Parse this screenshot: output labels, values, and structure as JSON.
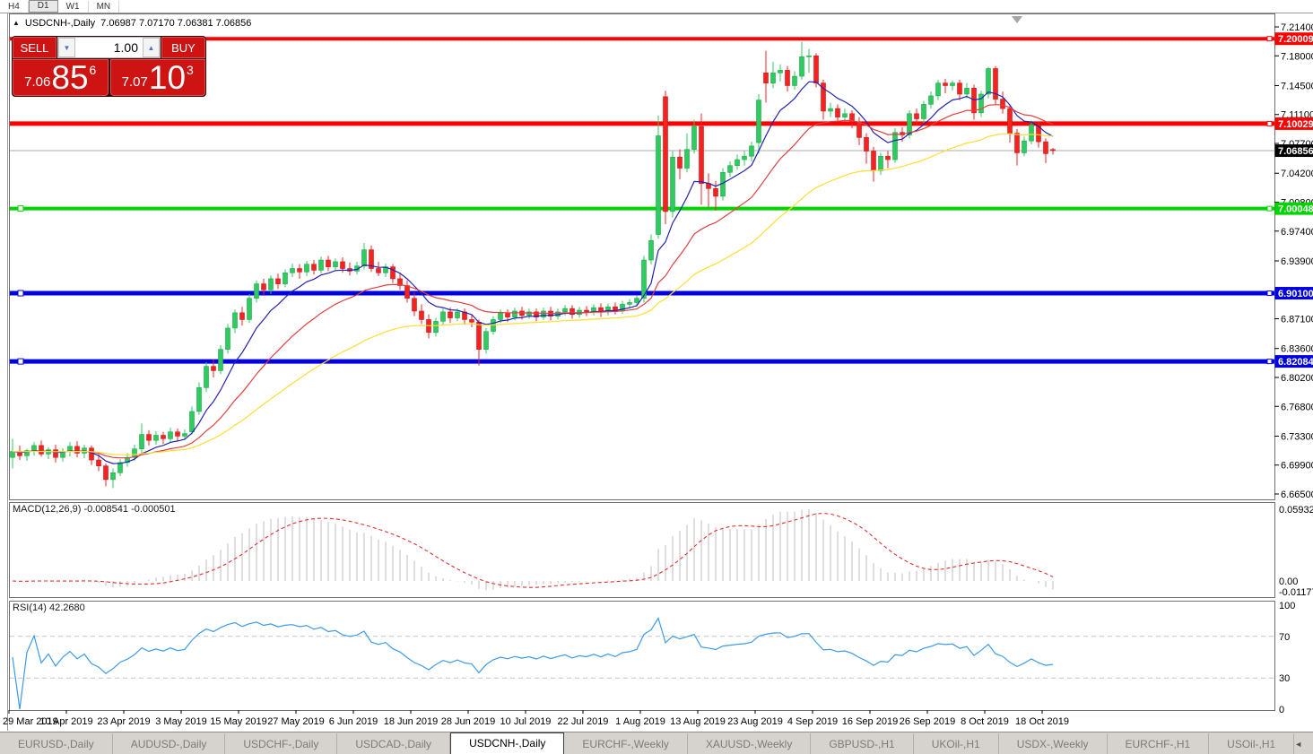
{
  "window": {
    "toolbar_timeframes": [
      "H4",
      "D1",
      "W1",
      "MN"
    ],
    "active_timeframe": "D1"
  },
  "chart_header": {
    "collapse_marker": "▲",
    "symbol": "USDCNH-,Daily",
    "ohlc_text": "7.06987 7.07170 7.06381 7.06856"
  },
  "trade_panel": {
    "sell_label": "SELL",
    "buy_label": "BUY",
    "volume_value": "1.00",
    "spin_down": "▼",
    "spin_up": "▲",
    "sell_price_prefix": "7.06",
    "sell_price_big": "85",
    "sell_price_sup": "6",
    "buy_price_prefix": "7.07",
    "buy_price_big": "10",
    "buy_price_sup": "3"
  },
  "price_axis": {
    "ticks": [
      "7.21400",
      "7.18000",
      "7.14500",
      "7.11100",
      "7.07700",
      "7.04200",
      "7.00800",
      "6.97400",
      "6.93900",
      "6.87100",
      "6.83600",
      "6.80200",
      "6.76800",
      "6.73300",
      "6.69900",
      "6.66500"
    ]
  },
  "macd_panel": {
    "label": "MACD(12,26,9) -0.008541 -0.000501",
    "axis_max": "0.059323",
    "axis_zero": "0.00",
    "axis_min": "-0.011773"
  },
  "rsi_panel": {
    "label": "RSI(14) 42.2680",
    "axis": [
      "100",
      "70",
      "30",
      "0"
    ]
  },
  "time_axis": {
    "labels": [
      "29 Mar 2019",
      "10 Apr 2019",
      "23 Apr 2019",
      "3 May 2019",
      "15 May 2019",
      "27 May 2019",
      "6 Jun 2019",
      "18 Jun 2019",
      "28 Jun 2019",
      "10 Jul 2019",
      "22 Jul 2019",
      "1 Aug 2019",
      "13 Aug 2019",
      "23 Aug 2019",
      "4 Sep 2019",
      "16 Sep 2019",
      "26 Sep 2019",
      "8 Oct 2019",
      "18 Oct 2019"
    ]
  },
  "tabs": {
    "items": [
      "EURUSD-,Daily",
      "AUDUSD-,Daily",
      "USDCHF-,Daily",
      "USDCAD-,Daily",
      "USDCNH-,Daily",
      "EURCHF-,Weekly",
      "XAUUSD-,Weekly",
      "GBPUSD-,H1",
      "UKOil-,H1",
      "USDX-,Weekly",
      "EURCHF-,H1",
      "USOil-,H1"
    ],
    "active": "USDCNH-,Daily",
    "scroll_left": "◄",
    "scroll_right": "►"
  },
  "colors": {
    "bull": "#2fca60",
    "bull_stroke": "#1fa94b",
    "bear": "#f52222",
    "bear_stroke": "#d31414",
    "ma_fast": "#2222b4",
    "ma_mid": "#e04040",
    "ma_slow": "#ffdd33",
    "macd_hist": "#bdbdbd",
    "macd_signal": "#e03030",
    "rsi_line": "#3d9be9",
    "level_red": "#ff0000",
    "level_green": "#00d400",
    "level_blue": "#0000e0",
    "current_price_line": "#ababab",
    "current_badge_bg": "#000000"
  },
  "chart_data": {
    "type": "candlestick",
    "symbol": "USDCNH",
    "timeframe": "Daily",
    "ylim": [
      6.6587,
      7.2298
    ],
    "x_labels": [
      "29 Mar 2019",
      "10 Apr 2019",
      "23 Apr 2019",
      "3 May 2019",
      "15 May 2019",
      "27 May 2019",
      "6 Jun 2019",
      "18 Jun 2019",
      "28 Jun 2019",
      "10 Jul 2019",
      "22 Jul 2019",
      "1 Aug 2019",
      "13 Aug 2019",
      "23 Aug 2019",
      "4 Sep 2019",
      "16 Sep 2019",
      "26 Sep 2019",
      "8 Oct 2019",
      "18 Oct 2019"
    ],
    "candles": [
      [
        6.708,
        6.73,
        6.695,
        6.715
      ],
      [
        6.715,
        6.722,
        6.705,
        6.71
      ],
      [
        6.71,
        6.718,
        6.704,
        6.716
      ],
      [
        6.716,
        6.726,
        6.71,
        6.722
      ],
      [
        6.722,
        6.728,
        6.709,
        6.712
      ],
      [
        6.712,
        6.72,
        6.706,
        6.717
      ],
      [
        6.717,
        6.723,
        6.702,
        6.708
      ],
      [
        6.708,
        6.719,
        6.703,
        6.715
      ],
      [
        6.715,
        6.726,
        6.709,
        6.721
      ],
      [
        6.721,
        6.727,
        6.708,
        6.713
      ],
      [
        6.713,
        6.723,
        6.707,
        6.719
      ],
      [
        6.719,
        6.722,
        6.699,
        6.705
      ],
      [
        6.705,
        6.712,
        6.692,
        6.698
      ],
      [
        6.698,
        6.701,
        6.674,
        6.682
      ],
      [
        6.682,
        6.695,
        6.672,
        6.69
      ],
      [
        6.69,
        6.706,
        6.686,
        6.702
      ],
      [
        6.702,
        6.713,
        6.697,
        6.708
      ],
      [
        6.708,
        6.723,
        6.704,
        6.718
      ],
      [
        6.718,
        6.748,
        6.713,
        6.735
      ],
      [
        6.735,
        6.74,
        6.722,
        6.728
      ],
      [
        6.728,
        6.739,
        6.723,
        6.734
      ],
      [
        6.734,
        6.738,
        6.724,
        6.73
      ],
      [
        6.73,
        6.743,
        6.726,
        6.738
      ],
      [
        6.738,
        6.742,
        6.727,
        6.733
      ],
      [
        6.733,
        6.741,
        6.729,
        6.736
      ],
      [
        6.738,
        6.768,
        6.735,
        6.762
      ],
      [
        6.762,
        6.796,
        6.758,
        6.79
      ],
      [
        6.79,
        6.82,
        6.785,
        6.815
      ],
      [
        6.815,
        6.823,
        6.802,
        6.81
      ],
      [
        6.81,
        6.84,
        6.806,
        6.835
      ],
      [
        6.835,
        6.865,
        6.83,
        6.86
      ],
      [
        6.86,
        6.882,
        6.854,
        6.878
      ],
      [
        6.878,
        6.885,
        6.863,
        6.87
      ],
      [
        6.87,
        6.9,
        6.866,
        6.895
      ],
      [
        6.895,
        6.916,
        6.89,
        6.912
      ],
      [
        6.912,
        6.918,
        6.898,
        6.905
      ],
      [
        6.905,
        6.922,
        6.9,
        6.918
      ],
      [
        6.918,
        6.924,
        6.906,
        6.912
      ],
      [
        6.912,
        6.929,
        6.908,
        6.925
      ],
      [
        6.925,
        6.936,
        6.92,
        6.93
      ],
      [
        6.93,
        6.935,
        6.918,
        6.926
      ],
      [
        6.926,
        6.939,
        6.921,
        6.935
      ],
      [
        6.935,
        6.94,
        6.923,
        6.928
      ],
      [
        6.928,
        6.944,
        6.924,
        6.94
      ],
      [
        6.94,
        6.945,
        6.927,
        6.932
      ],
      [
        6.932,
        6.942,
        6.928,
        6.938
      ],
      [
        6.938,
        6.943,
        6.925,
        6.93
      ],
      [
        6.93,
        6.937,
        6.922,
        6.927
      ],
      [
        6.927,
        6.938,
        6.923,
        6.933
      ],
      [
        6.933,
        6.96,
        6.929,
        6.952
      ],
      [
        6.952,
        6.957,
        6.926,
        6.93
      ],
      [
        6.93,
        6.938,
        6.921,
        6.925
      ],
      [
        6.925,
        6.936,
        6.92,
        6.932
      ],
      [
        6.932,
        6.935,
        6.913,
        6.918
      ],
      [
        6.918,
        6.925,
        6.905,
        6.91
      ],
      [
        6.91,
        6.916,
        6.89,
        6.895
      ],
      [
        6.895,
        6.902,
        6.874,
        6.88
      ],
      [
        6.88,
        6.888,
        6.865,
        6.87
      ],
      [
        6.87,
        6.876,
        6.848,
        6.855
      ],
      [
        6.855,
        6.872,
        6.85,
        6.868
      ],
      [
        6.868,
        6.883,
        6.864,
        6.879
      ],
      [
        6.879,
        6.884,
        6.866,
        6.872
      ],
      [
        6.872,
        6.883,
        6.868,
        6.879
      ],
      [
        6.879,
        6.883,
        6.864,
        6.87
      ],
      [
        6.87,
        6.876,
        6.861,
        6.867
      ],
      [
        6.867,
        6.87,
        6.816,
        6.835
      ],
      [
        6.835,
        6.86,
        6.83,
        6.856
      ],
      [
        6.856,
        6.874,
        6.852,
        6.87
      ],
      [
        6.87,
        6.882,
        6.866,
        6.878
      ],
      [
        6.878,
        6.882,
        6.867,
        6.873
      ],
      [
        6.873,
        6.884,
        6.869,
        6.88
      ],
      [
        6.88,
        6.885,
        6.87,
        6.875
      ],
      [
        6.875,
        6.883,
        6.871,
        6.879
      ],
      [
        6.879,
        6.883,
        6.868,
        6.873
      ],
      [
        6.873,
        6.884,
        6.87,
        6.88
      ],
      [
        6.88,
        6.885,
        6.869,
        6.874
      ],
      [
        6.874,
        6.883,
        6.87,
        6.879
      ],
      [
        6.879,
        6.887,
        6.875,
        6.883
      ],
      [
        6.883,
        6.887,
        6.871,
        6.876
      ],
      [
        6.876,
        6.885,
        6.872,
        6.881
      ],
      [
        6.881,
        6.886,
        6.874,
        6.879
      ],
      [
        6.879,
        6.888,
        6.875,
        6.884
      ],
      [
        6.884,
        6.889,
        6.873,
        6.879
      ],
      [
        6.879,
        6.889,
        6.875,
        6.885
      ],
      [
        6.885,
        6.89,
        6.876,
        6.88
      ],
      [
        6.88,
        6.892,
        6.877,
        6.888
      ],
      [
        6.888,
        6.894,
        6.883,
        6.89
      ],
      [
        6.89,
        6.898,
        6.885,
        6.895
      ],
      [
        6.895,
        6.945,
        6.89,
        6.94
      ],
      [
        6.94,
        6.97,
        6.935,
        6.963
      ],
      [
        6.97,
        7.11,
        6.965,
        7.086
      ],
      [
        7.132,
        7.139,
        6.982,
        6.997
      ],
      [
        6.997,
        7.068,
        6.99,
        7.061
      ],
      [
        7.061,
        7.07,
        7.035,
        7.048
      ],
      [
        7.048,
        7.089,
        7.043,
        7.07
      ],
      [
        7.07,
        7.105,
        7.065,
        7.097
      ],
      [
        7.097,
        7.112,
        7.005,
        7.03
      ],
      [
        7.03,
        7.042,
        7.002,
        7.024
      ],
      [
        7.024,
        7.033,
        6.998,
        7.015
      ],
      [
        7.015,
        7.048,
        7.01,
        7.043
      ],
      [
        7.043,
        7.056,
        7.038,
        7.051
      ],
      [
        7.051,
        7.064,
        7.046,
        7.058
      ],
      [
        7.058,
        7.068,
        7.051,
        7.062
      ],
      [
        7.062,
        7.079,
        7.056,
        7.074
      ],
      [
        7.078,
        7.135,
        7.065,
        7.128
      ],
      [
        7.16,
        7.186,
        7.125,
        7.148
      ],
      [
        7.148,
        7.173,
        7.142,
        7.16
      ],
      [
        7.16,
        7.17,
        7.15,
        7.163
      ],
      [
        7.163,
        7.168,
        7.138,
        7.145
      ],
      [
        7.145,
        7.162,
        7.14,
        7.156
      ],
      [
        7.156,
        7.1965,
        7.152,
        7.179
      ],
      [
        7.179,
        7.188,
        7.16,
        7.18
      ],
      [
        7.18,
        7.183,
        7.143,
        7.148
      ],
      [
        7.148,
        7.152,
        7.105,
        7.115
      ],
      [
        7.115,
        7.125,
        7.108,
        7.118
      ],
      [
        7.118,
        7.123,
        7.102,
        7.108
      ],
      [
        7.108,
        7.118,
        7.103,
        7.112
      ],
      [
        7.112,
        7.116,
        7.095,
        7.102
      ],
      [
        7.102,
        7.108,
        7.075,
        7.084
      ],
      [
        7.084,
        7.089,
        7.053,
        7.068
      ],
      [
        7.068,
        7.073,
        7.032,
        7.045
      ],
      [
        7.045,
        7.066,
        7.04,
        7.062
      ],
      [
        7.062,
        7.068,
        7.048,
        7.058
      ],
      [
        7.058,
        7.095,
        7.054,
        7.09
      ],
      [
        7.09,
        7.096,
        7.079,
        7.087
      ],
      [
        7.087,
        7.116,
        7.083,
        7.112
      ],
      [
        7.112,
        7.118,
        7.098,
        7.106
      ],
      [
        7.106,
        7.127,
        7.101,
        7.123
      ],
      [
        7.123,
        7.138,
        7.118,
        7.133
      ],
      [
        7.133,
        7.152,
        7.128,
        7.148
      ],
      [
        7.148,
        7.153,
        7.136,
        7.145
      ],
      [
        7.145,
        7.151,
        7.139,
        7.148
      ],
      [
        7.148,
        7.152,
        7.128,
        7.135
      ],
      [
        7.135,
        7.148,
        7.13,
        7.142
      ],
      [
        7.142,
        7.146,
        7.105,
        7.113
      ],
      [
        7.113,
        7.139,
        7.108,
        7.135
      ],
      [
        7.135,
        7.167,
        7.13,
        7.165
      ],
      [
        7.165,
        7.168,
        7.123,
        7.129
      ],
      [
        7.129,
        7.138,
        7.112,
        7.118
      ],
      [
        7.118,
        7.122,
        7.078,
        7.089
      ],
      [
        7.089,
        7.094,
        7.051,
        7.066
      ],
      [
        7.066,
        7.085,
        7.062,
        7.08
      ],
      [
        7.08,
        7.104,
        7.076,
        7.099
      ],
      [
        7.099,
        7.103,
        7.072,
        7.079
      ],
      [
        7.079,
        7.083,
        7.054,
        7.065
      ],
      [
        7.0699,
        7.0717,
        7.0638,
        7.0686
      ]
    ],
    "moving_averages": [
      {
        "name": "fast-ma",
        "period": 8,
        "color_key": "ma_fast"
      },
      {
        "name": "medium-ma",
        "period": 20,
        "color_key": "ma_mid"
      },
      {
        "name": "slow-ma",
        "period": 45,
        "color_key": "ma_slow"
      }
    ],
    "levels": [
      {
        "value": 7.20009,
        "label": "7.20009",
        "color_key": "level_red",
        "thickness": 4,
        "left_handle": false
      },
      {
        "value": 7.10029,
        "label": "7.10029",
        "color_key": "level_red",
        "thickness": 5,
        "left_handle": false
      },
      {
        "value": 7.00048,
        "label": "7.00048",
        "color_key": "level_green",
        "thickness": 4,
        "left_handle": true
      },
      {
        "value": 6.901,
        "label": "6.90100",
        "color_key": "level_blue",
        "thickness": 5,
        "left_handle": true
      },
      {
        "value": 6.82084,
        "label": "6.82084",
        "color_key": "level_blue",
        "thickness": 5,
        "left_handle": true
      }
    ],
    "current_price": {
      "value": 7.06856,
      "label": "7.06856"
    },
    "macd": {
      "fast": 12,
      "slow": 26,
      "signal": 9,
      "last_value": "-0.008541",
      "last_signal": "-0.000501",
      "axis": [
        "0.059323",
        "0.00",
        "-0.011773"
      ]
    },
    "rsi": {
      "period": 14,
      "last_value": "42.2680",
      "levels": [
        70,
        30
      ],
      "axis": [
        "100",
        "70",
        "30",
        "0"
      ]
    }
  }
}
